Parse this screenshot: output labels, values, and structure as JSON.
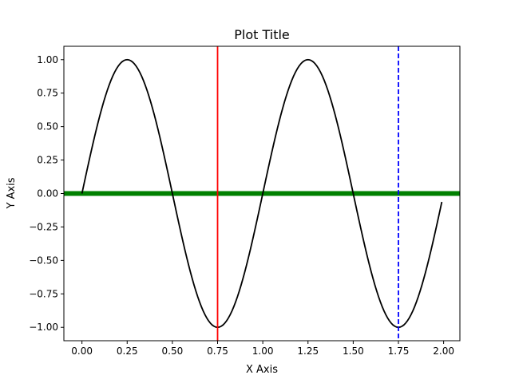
{
  "chart_data": {
    "type": "line",
    "title": "Plot Title",
    "xlabel": "X Axis",
    "ylabel": "Y Axis",
    "xlim": [
      -0.1,
      2.09
    ],
    "ylim": [
      -1.1,
      1.1
    ],
    "xticks": [
      0.0,
      0.25,
      0.5,
      0.75,
      1.0,
      1.25,
      1.5,
      1.75,
      2.0
    ],
    "xtick_labels": [
      "0.00",
      "0.25",
      "0.50",
      "0.75",
      "1.00",
      "1.25",
      "1.50",
      "1.75",
      "2.00"
    ],
    "yticks": [
      -1.0,
      -0.75,
      -0.5,
      -0.25,
      0.0,
      0.25,
      0.5,
      0.75,
      1.0
    ],
    "ytick_labels": [
      "−1.00",
      "−0.75",
      "−0.50",
      "−0.25",
      "0.00",
      "0.25",
      "0.50",
      "0.75",
      "1.00"
    ],
    "grid": false,
    "series": [
      {
        "function": "sin(2*pi*x)",
        "x_start": 0.0,
        "x_end": 1.99,
        "x_step": 0.01,
        "color": "#000000"
      }
    ],
    "horizontal_lines": [
      {
        "y": 0.0,
        "color": "#008000",
        "style": "solid"
      }
    ],
    "vertical_lines": [
      {
        "x": 0.75,
        "color": "#ff0000",
        "style": "solid"
      },
      {
        "x": 1.75,
        "color": "#0000ff",
        "style": "dashed"
      }
    ]
  }
}
